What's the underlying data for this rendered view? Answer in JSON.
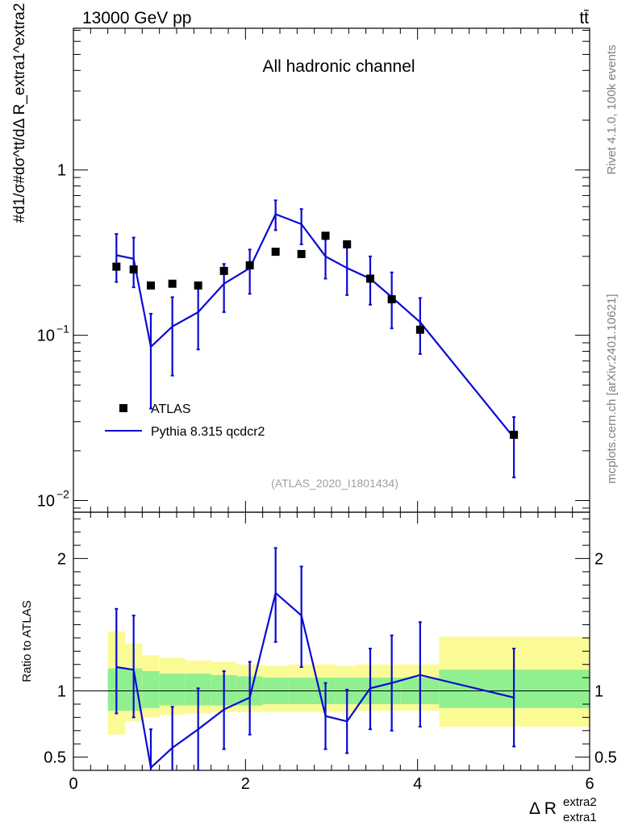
{
  "header": {
    "energy_label": "13000 GeV pp",
    "process_label": "tt̄",
    "channel_label": "All hadronic channel",
    "analysis_id": "(ATLAS_2020_I1801434)",
    "side_rivet": "Rivet 4.1.0,  100k events",
    "side_mcplots": "mcplots.cern.ch [arXiv:2401.10621]"
  },
  "axes": {
    "ylabel_main": "#d1/σ#dσ^tt/dΔ R_extra1^extra2",
    "ylabel_ratio": "Ratio to ATLAS",
    "xlabel_main": "Δ R",
    "xlabel_sup": "extra2",
    "xlabel_sub": "extra1",
    "x_ticks": [
      "0",
      "2",
      "4",
      "6"
    ],
    "y_main_ticks": [
      {
        "value": 1,
        "label": "1"
      },
      {
        "value": 0.1,
        "label": "10",
        "exp": "−1"
      },
      {
        "value": 0.01,
        "label": "10",
        "exp": "−2"
      }
    ],
    "y_ratio_ticks": [
      "2",
      "1",
      "0.5"
    ]
  },
  "legend": {
    "data_label": "ATLAS",
    "mc_label": "Pythia 8.315 qcdcr2"
  },
  "colors": {
    "mc": "#0a0ad2",
    "data": "#000000",
    "band_inner": "#90f090",
    "band_outer": "#fbfb96"
  },
  "chart_data": {
    "type": "scatter",
    "title": "All hadronic channel",
    "xlim": [
      0,
      6
    ],
    "ylim_main": [
      0.0085,
      7.2
    ],
    "ylim_ratio": [
      0.4,
      2.35
    ],
    "x_bins": [
      0.4,
      0.6,
      0.8,
      1.0,
      1.3,
      1.6,
      1.9,
      2.2,
      2.5,
      2.8,
      3.05,
      3.3,
      3.6,
      3.8,
      4.25,
      6.0
    ],
    "atlas": {
      "name": "ATLAS",
      "x": [
        0.5,
        0.7,
        0.9,
        1.15,
        1.45,
        1.75,
        2.05,
        2.35,
        2.65,
        2.93,
        3.18,
        3.45,
        3.7,
        4.03,
        5.12
      ],
      "y": [
        0.26,
        0.25,
        0.2,
        0.205,
        0.2,
        0.245,
        0.265,
        0.32,
        0.31,
        0.4,
        0.355,
        0.22,
        0.165,
        0.108,
        0.025
      ]
    },
    "mc": {
      "name": "Pythia 8.315 qcdcr2",
      "x": [
        0.5,
        0.7,
        0.9,
        1.15,
        1.45,
        1.75,
        2.05,
        2.35,
        2.65,
        2.93,
        3.18,
        3.45,
        3.7,
        4.03,
        5.12
      ],
      "y": [
        0.305,
        0.29,
        0.085,
        0.113,
        0.138,
        0.205,
        0.255,
        0.54,
        0.47,
        0.3,
        0.255,
        0.22,
        0.17,
        0.12,
        0.024
      ],
      "y_err_low": [
        0.21,
        0.195,
        0.036,
        0.057,
        0.082,
        0.138,
        0.178,
        0.432,
        0.355,
        0.22,
        0.175,
        0.153,
        0.11,
        0.077,
        0.0138
      ],
      "y_err_high": [
        0.41,
        0.39,
        0.135,
        0.17,
        0.2,
        0.27,
        0.33,
        0.655,
        0.58,
        0.38,
        0.34,
        0.3,
        0.24,
        0.168,
        0.032
      ]
    },
    "ratio": {
      "y": [
        1.18,
        1.16,
        0.42,
        0.57,
        0.71,
        0.86,
        0.95,
        1.74,
        1.57,
        0.81,
        0.77,
        1.02,
        1.06,
        1.12,
        0.95
      ],
      "y_err_low": [
        0.83,
        0.8,
        0.2,
        0.28,
        0.4,
        0.56,
        0.67,
        1.37,
        1.18,
        0.56,
        0.53,
        0.71,
        0.7,
        0.73,
        0.58
      ],
      "y_err_high": [
        1.62,
        1.57,
        0.71,
        0.88,
        1.02,
        1.15,
        1.22,
        2.08,
        1.94,
        1.06,
        1.01,
        1.32,
        1.42,
        1.52,
        1.32
      ]
    },
    "band_inner": {
      "low": [
        0.85,
        0.85,
        0.87,
        0.89,
        0.89,
        0.89,
        0.89,
        0.9,
        0.9,
        0.9,
        0.9,
        0.9,
        0.9,
        0.9,
        0.87
      ],
      "high": [
        1.17,
        1.17,
        1.15,
        1.13,
        1.13,
        1.12,
        1.11,
        1.1,
        1.1,
        1.1,
        1.1,
        1.1,
        1.1,
        1.1,
        1.16
      ]
    },
    "band_outer": {
      "low": [
        0.67,
        0.77,
        0.8,
        0.82,
        0.83,
        0.84,
        0.84,
        0.84,
        0.84,
        0.84,
        0.84,
        0.85,
        0.85,
        0.85,
        0.73
      ],
      "high": [
        1.45,
        1.36,
        1.27,
        1.25,
        1.23,
        1.22,
        1.2,
        1.19,
        1.2,
        1.2,
        1.19,
        1.2,
        1.2,
        1.2,
        1.41
      ]
    }
  }
}
